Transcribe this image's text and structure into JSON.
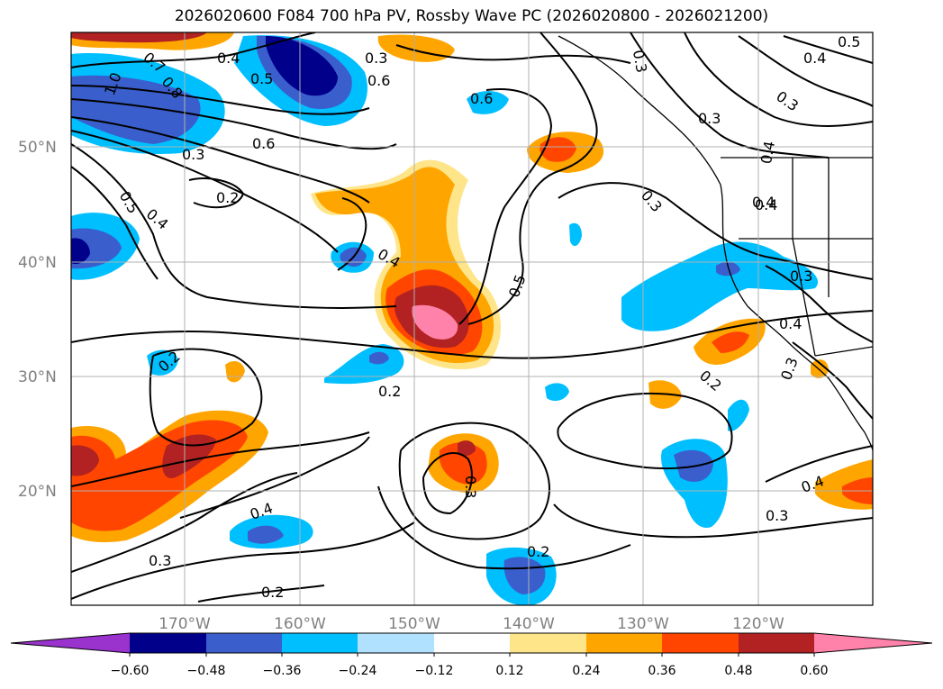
{
  "title": "2026020600 F084 700 hPa PV, Rossby Wave PC (2026020800 - 2026021200)",
  "axes": {
    "lat_labels": [
      "50°N",
      "40°N",
      "30°N",
      "20°N"
    ],
    "lon_labels": [
      "170°W",
      "160°W",
      "150°W",
      "140°W",
      "130°W",
      "120°W"
    ]
  },
  "colorbar": {
    "ticks": [
      "−0.60",
      "−0.48",
      "−0.36",
      "−0.24",
      "−0.12",
      "0.12",
      "0.24",
      "0.36",
      "0.48",
      "0.60"
    ],
    "colors": {
      "below": "#9a32cd",
      "neg_060_048": "#00008b",
      "neg_048_036": "#3a5fcd",
      "neg_036_024": "#00bfff",
      "neg_024_012": "#b0e2ff",
      "neutral": "#ffffff",
      "pos_012_024": "#ffe58a",
      "pos_024_036": "#ffa500",
      "pos_036_048": "#ff4500",
      "pos_048_060": "#b22222",
      "above": "#ff82ab"
    }
  },
  "contour_labels": [
    "0.5",
    "0.4",
    "0.3",
    "0.4",
    "0.5",
    "0.6",
    "0.3",
    "0.3",
    "0.4",
    "1.0",
    "0.8",
    "0.7",
    "0.6",
    "0.3",
    "0.2",
    "0.5",
    "0.4",
    "0.6",
    "0.4",
    "0.5",
    "0.3",
    "0.4",
    "0.3",
    "0.4",
    "0.3",
    "0.2",
    "0.2",
    "0.2",
    "0.4",
    "0.3",
    "0.2",
    "0.3",
    "0.2",
    "0.4",
    "0.3",
    "0.4",
    "0.3"
  ]
}
